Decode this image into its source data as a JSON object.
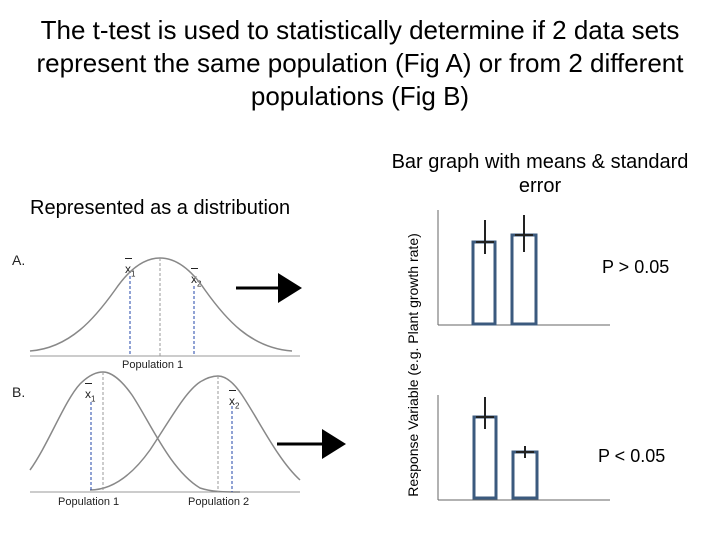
{
  "title": "The t-test is used to statistically determine if 2 data sets represent the same population (Fig A) or from 2 different populations (Fig B)",
  "left_heading": "Represented as a distribution",
  "right_heading": "Bar graph with means & standard error",
  "y_axis_label": "Response Variable (e.g. Plant growth rate)",
  "figure_a": {
    "letter": "A.",
    "mean_1": {
      "symbol": "x",
      "subscript": "1"
    },
    "mean_2": {
      "symbol": "x",
      "subscript": "2"
    },
    "population_label": "Population 1",
    "p_value": "P > 0.05"
  },
  "figure_b": {
    "letter": "B.",
    "mean_1": {
      "symbol": "x",
      "subscript": "1"
    },
    "mean_2": {
      "symbol": "x",
      "subscript": "2"
    },
    "population_1_label": "Population 1",
    "population_2_label": "Population 2",
    "p_value": "P < 0.05"
  },
  "colors": {
    "bar_stroke": "#3b5a7e",
    "mean_line": "#2244aa",
    "curve": "#888888",
    "axis": "#666666"
  }
}
